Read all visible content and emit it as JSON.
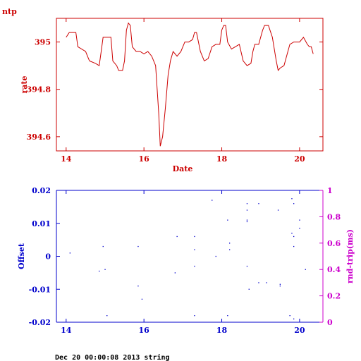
{
  "header": {
    "corner_label": "ntp"
  },
  "footer": {
    "text": "Dec 20 00:00:08 2013 string"
  },
  "colors": {
    "top": "#cc0000",
    "offset": "#0000cc",
    "rtt": "#cc00cc"
  },
  "chart_data": [
    {
      "type": "line",
      "title": "",
      "xlabel": "Date",
      "ylabel": "rate",
      "xlim": [
        13.75,
        20.6
      ],
      "ylim": [
        394.54,
        395.1
      ],
      "x_ticks": [
        14,
        16,
        18,
        20
      ],
      "y_ticks": [
        394.6,
        394.8,
        395
      ],
      "series": [
        {
          "points": [
            [
              14.0,
              395.02
            ],
            [
              14.08,
              395.04
            ],
            [
              14.25,
              395.04
            ],
            [
              14.3,
              394.98
            ],
            [
              14.5,
              394.96
            ],
            [
              14.55,
              394.94
            ],
            [
              14.6,
              394.92
            ],
            [
              14.75,
              394.91
            ],
            [
              14.85,
              394.9
            ],
            [
              14.9,
              394.96
            ],
            [
              14.95,
              395.02
            ],
            [
              15.0,
              395.02
            ],
            [
              15.15,
              395.02
            ],
            [
              15.2,
              394.92
            ],
            [
              15.3,
              394.9
            ],
            [
              15.35,
              394.88
            ],
            [
              15.45,
              394.88
            ],
            [
              15.5,
              394.92
            ],
            [
              15.55,
              395.05
            ],
            [
              15.6,
              395.08
            ],
            [
              15.65,
              395.07
            ],
            [
              15.7,
              394.98
            ],
            [
              15.8,
              394.96
            ],
            [
              15.9,
              394.96
            ],
            [
              16.0,
              394.95
            ],
            [
              16.1,
              394.96
            ],
            [
              16.2,
              394.94
            ],
            [
              16.3,
              394.9
            ],
            [
              16.38,
              394.7
            ],
            [
              16.42,
              394.56
            ],
            [
              16.48,
              394.6
            ],
            [
              16.55,
              394.72
            ],
            [
              16.62,
              394.86
            ],
            [
              16.68,
              394.92
            ],
            [
              16.75,
              394.96
            ],
            [
              16.85,
              394.94
            ],
            [
              16.95,
              394.96
            ],
            [
              17.05,
              395.0
            ],
            [
              17.15,
              395.0
            ],
            [
              17.25,
              395.01
            ],
            [
              17.3,
              395.04
            ],
            [
              17.35,
              395.04
            ],
            [
              17.45,
              394.96
            ],
            [
              17.55,
              394.92
            ],
            [
              17.65,
              394.93
            ],
            [
              17.75,
              394.98
            ],
            [
              17.85,
              394.99
            ],
            [
              17.95,
              394.99
            ],
            [
              18.0,
              395.05
            ],
            [
              18.05,
              395.07
            ],
            [
              18.1,
              395.07
            ],
            [
              18.15,
              395.0
            ],
            [
              18.25,
              394.97
            ],
            [
              18.35,
              394.98
            ],
            [
              18.45,
              394.99
            ],
            [
              18.55,
              394.92
            ],
            [
              18.65,
              394.9
            ],
            [
              18.75,
              394.91
            ],
            [
              18.8,
              394.96
            ],
            [
              18.85,
              394.99
            ],
            [
              18.95,
              394.99
            ],
            [
              19.05,
              395.05
            ],
            [
              19.1,
              395.07
            ],
            [
              19.2,
              395.07
            ],
            [
              19.3,
              395.02
            ],
            [
              19.4,
              394.92
            ],
            [
              19.45,
              394.88
            ],
            [
              19.5,
              394.89
            ],
            [
              19.6,
              394.9
            ],
            [
              19.7,
              394.96
            ],
            [
              19.75,
              394.99
            ],
            [
              19.85,
              395.0
            ],
            [
              19.95,
              395.0
            ],
            [
              20.0,
              395.0
            ],
            [
              20.1,
              395.02
            ],
            [
              20.2,
              394.99
            ],
            [
              20.25,
              394.98
            ],
            [
              20.3,
              394.98
            ],
            [
              20.35,
              394.95
            ]
          ]
        }
      ]
    },
    {
      "type": "scatter",
      "title": "",
      "xlabel": "",
      "ylabel": "Offset",
      "y2label": "rnd-trip(ms)",
      "xlim": [
        13.75,
        20.6
      ],
      "ylim": [
        -0.02,
        0.02
      ],
      "y2lim": [
        0,
        1
      ],
      "x_ticks": [
        14,
        16,
        18,
        20
      ],
      "y_ticks": [
        -0.02,
        -0.01,
        0,
        0.01,
        0.02
      ],
      "y_tick_labels": [
        "-0.02",
        "-0.01",
        "0",
        "0.01",
        "0.02"
      ],
      "y2_ticks": [
        0,
        0.2,
        0.4,
        0.6,
        0.8,
        1
      ],
      "y2_tick_labels": [
        "0",
        "0.2",
        "0.4",
        "0.6",
        "0.8",
        "1"
      ],
      "series": [
        {
          "axis": "left",
          "points": [
            [
              14.1,
              0.001
            ],
            [
              14.85,
              -0.0045
            ],
            [
              14.95,
              0.003
            ],
            [
              15.0,
              -0.004
            ],
            [
              15.05,
              -0.018
            ],
            [
              15.85,
              0.003
            ],
            [
              15.85,
              -0.009
            ],
            [
              15.95,
              -0.013
            ],
            [
              16.8,
              -0.005
            ],
            [
              16.85,
              0.006
            ],
            [
              17.3,
              0.006
            ],
            [
              17.3,
              0.002
            ],
            [
              17.3,
              -0.003
            ],
            [
              17.3,
              -0.018
            ],
            [
              17.75,
              0.017
            ],
            [
              17.85,
              0.0
            ],
            [
              18.15,
              0.011
            ],
            [
              18.2,
              0.004
            ],
            [
              18.2,
              0.002
            ],
            [
              18.15,
              -0.018
            ],
            [
              18.65,
              0.016
            ],
            [
              18.65,
              0.014
            ],
            [
              18.65,
              0.011
            ],
            [
              18.65,
              0.0105
            ],
            [
              18.65,
              -0.003
            ],
            [
              18.7,
              -0.01
            ],
            [
              18.95,
              0.016
            ],
            [
              18.95,
              -0.008
            ],
            [
              19.15,
              -0.008
            ],
            [
              19.45,
              0.014
            ],
            [
              19.5,
              -0.0085
            ],
            [
              19.5,
              -0.009
            ],
            [
              19.8,
              0.0175
            ],
            [
              19.85,
              0.016
            ],
            [
              19.8,
              0.007
            ],
            [
              19.85,
              0.006
            ],
            [
              19.85,
              0.003
            ],
            [
              19.75,
              -0.018
            ],
            [
              20.0,
              0.011
            ],
            [
              20.0,
              0.0085
            ],
            [
              20.15,
              -0.004
            ],
            [
              19.85,
              -0.019
            ]
          ]
        }
      ]
    }
  ]
}
